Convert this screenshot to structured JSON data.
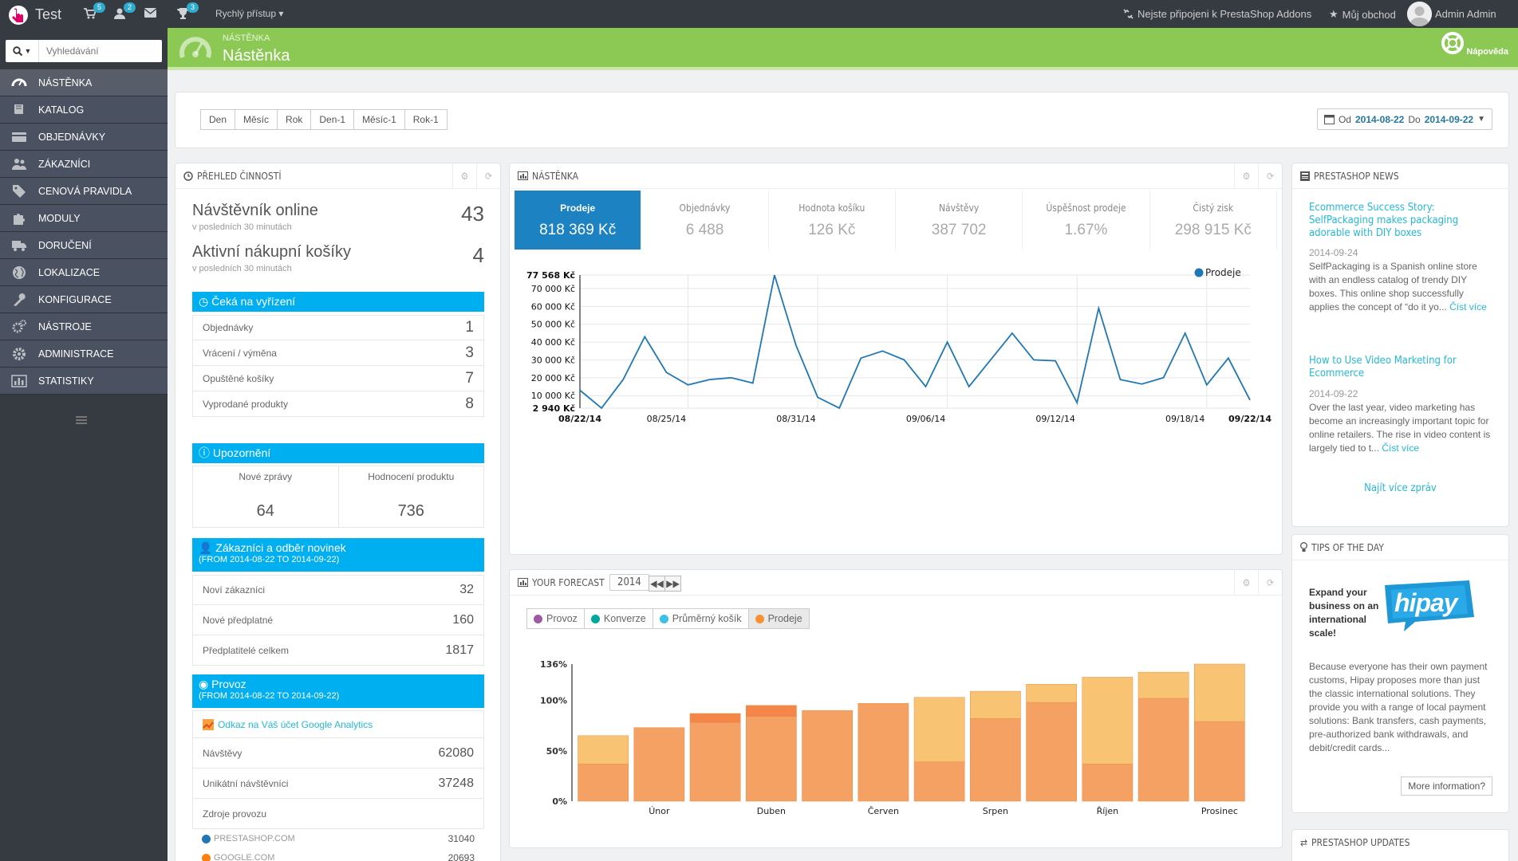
{
  "topbar": {
    "shop_name": "Test",
    "cart_badge": "5",
    "customers_badge": "2",
    "trophy_badge": "3",
    "quick_access": "Rychlý přístup",
    "addons_link": "Nejste připojeni k PrestaShop Addons",
    "my_shop": "Můj obchod",
    "admin_name": "Admin Admin"
  },
  "sidebar": {
    "search_placeholder": "Vyhledávání",
    "items": [
      {
        "label": "NÁSTĚNKA",
        "icon": "dashboard-icon"
      },
      {
        "label": "KATALOG",
        "icon": "book-icon"
      },
      {
        "label": "OBJEDNÁVKY",
        "icon": "credit-card-icon"
      },
      {
        "label": "ZÁKAZNÍCI",
        "icon": "users-icon"
      },
      {
        "label": "CENOVÁ PRAVIDLA",
        "icon": "tags-icon"
      },
      {
        "label": "MODULY",
        "icon": "puzzle-icon"
      },
      {
        "label": "DORUČENÍ",
        "icon": "truck-icon"
      },
      {
        "label": "LOKALIZACE",
        "icon": "globe-icon"
      },
      {
        "label": "KONFIGURACE",
        "icon": "wrench-icon"
      },
      {
        "label": "NÁSTROJE",
        "icon": "cogs-icon"
      },
      {
        "label": "ADMINISTRACE",
        "icon": "cog-icon"
      },
      {
        "label": "STATISTIKY",
        "icon": "bar-chart-icon"
      }
    ]
  },
  "header": {
    "breadcrumb": "NÁSTĚNKA",
    "title": "Nástěnka",
    "help": "Nápověda"
  },
  "period": {
    "buttons": [
      "Den",
      "Měsíc",
      "Rok",
      "Den-1",
      "Měsíc-1",
      "Rok-1"
    ],
    "from_label": "Od",
    "from": "2014-08-22",
    "to_label": "Do",
    "to": "2014-09-22"
  },
  "activity": {
    "title": "PŘEHLED ČINNOSTÍ",
    "online_label": "Návštěvník online",
    "online_value": "43",
    "online_note": "v posledních 30 minutách",
    "carts_label": "Aktivní nákupní košíky",
    "carts_value": "4",
    "carts_note": "v posledních 30 minutách",
    "pending_title": "Čeká na vyřízení",
    "pending": [
      {
        "label": "Objednávky",
        "value": "1"
      },
      {
        "label": "Vrácení / výměna",
        "value": "3"
      },
      {
        "label": "Opuštěné košíky",
        "value": "7"
      },
      {
        "label": "Vyprodané produkty",
        "value": "8"
      }
    ],
    "notif_title": "Upozornění",
    "notif": [
      {
        "label": "Nové zprávy",
        "value": "64"
      },
      {
        "label": "Hodnocení produktu",
        "value": "736"
      }
    ],
    "customers_title": "Zákazníci a odběr novinek",
    "customers_sub": "(FROM 2014-08-22 TO 2014-09-22)",
    "customers": [
      {
        "label": "Noví zákazníci",
        "value": "32"
      },
      {
        "label": "Nové předplatné",
        "value": "160"
      },
      {
        "label": "Předplatitelé celkem",
        "value": "1817"
      }
    ],
    "traffic_title": "Provoz",
    "traffic_sub": "(FROM 2014-08-22 TO 2014-09-22)",
    "ga_link": "Odkaz na Váš účet Google Analytics",
    "traffic": [
      {
        "label": "Návštěvy",
        "value": "62080"
      },
      {
        "label": "Unikátní návštěvníci",
        "value": "37248"
      }
    ],
    "sources_label": "Zdroje provozu",
    "sources": [
      {
        "label": "PRESTASHOP.COM",
        "value": "31040",
        "color": "#1f77b4"
      },
      {
        "label": "GOOGLE.COM",
        "value": "20693",
        "color": "#ff7f0e"
      }
    ]
  },
  "dashboard": {
    "title": "NÁSTĚNKA",
    "kpis": [
      {
        "label": "Prodeje",
        "value": "818 369 Kč"
      },
      {
        "label": "Objednávky",
        "value": "6 488"
      },
      {
        "label": "Hodnota košíku",
        "value": "126 Kč"
      },
      {
        "label": "Návštěvy",
        "value": "387 702"
      },
      {
        "label": "Úspěšnost prodeje",
        "value": "1.67%"
      },
      {
        "label": "Čistý zisk",
        "value": "298 915 Kč"
      }
    ],
    "chart_data": {
      "type": "line",
      "series": [
        {
          "name": "Prodeje",
          "color": "#1f77b4",
          "values": [
            13000,
            3000,
            19000,
            43000,
            23000,
            16000,
            19000,
            20000,
            17000,
            77568,
            38000,
            9000,
            3000,
            31000,
            35000,
            30000,
            15000,
            40000,
            15000,
            30000,
            45000,
            30000,
            29500,
            6000,
            59000,
            19000,
            16500,
            20000,
            45000,
            16000,
            31000,
            7500
          ]
        }
      ],
      "x_tick_labels": [
        "08/22/14",
        "08/25/14",
        "08/31/14",
        "09/06/14",
        "09/12/14",
        "09/18/14",
        "09/22/14"
      ],
      "y_tick_labels": [
        "77 568 Kč",
        "70 000 Kč",
        "60 000 Kč",
        "50 000 Kč",
        "40 000 Kč",
        "30 000 Kč",
        "20 000 Kč",
        "10 000 Kč",
        "2 940 Kč"
      ],
      "y_ticks": [
        77568,
        70000,
        60000,
        50000,
        40000,
        30000,
        20000,
        10000,
        2940
      ],
      "ylim": [
        2940,
        77568
      ],
      "legend": "top-right",
      "grid": true
    }
  },
  "forecast": {
    "title": "YOUR FORECAST",
    "year": "2014",
    "legend": [
      {
        "label": "Provoz",
        "color": "#9e5ba1",
        "active": false
      },
      {
        "label": "Konverze",
        "color": "#00a89c",
        "active": false
      },
      {
        "label": "Průměrný košík",
        "color": "#3cc2e6",
        "active": false
      },
      {
        "label": "Prodeje",
        "color": "#f99031",
        "active": true
      }
    ],
    "chart_data": {
      "type": "bar",
      "stacked": true,
      "y_tick_labels": [
        "136%",
        "100%",
        "50%",
        "0%"
      ],
      "y_ticks": [
        136,
        100,
        50,
        0
      ],
      "ylim": [
        0,
        136
      ],
      "visible_x_labels": [
        "Únor",
        "Duben",
        "Červen",
        "Srpen",
        "Říjen",
        "Prosinec"
      ],
      "series": [
        {
          "name": "Prodeje",
          "color": "#f4a163",
          "values": [
            37,
            73,
            78,
            84,
            90,
            97,
            39,
            82,
            98,
            37,
            102,
            79
          ]
        },
        {
          "name": "Prodeje",
          "color": "#f8c474",
          "values": [
            28,
            0,
            0,
            0,
            0,
            0,
            64,
            27,
            18,
            86,
            26,
            57
          ]
        },
        {
          "name": "Prodeje",
          "color": "#f4864a",
          "values": [
            0,
            0,
            9,
            11,
            0,
            0,
            0,
            0,
            0,
            0,
            0,
            0
          ]
        }
      ]
    }
  },
  "news": {
    "title": "PRESTASHOP NEWS",
    "items": [
      {
        "title": "Ecommerce Success Story: SelfPackaging makes packaging adorable with DIY boxes",
        "date": "2014-09-24",
        "text": "SelfPackaging is a Spanish online store with an endless catalog of trendy DIY boxes. This online shop successfully applies the concept of “do it yo...",
        "more": "Číst více"
      },
      {
        "title": "How to Use Video Marketing for Ecommerce",
        "date": "2014-09-22",
        "text": "Over the last year, video marketing has become an increasingly important topic for online retailers. The rise in video content is largely tied to t...",
        "more": "Číst více"
      }
    ],
    "more_news": "Najít více zpráv"
  },
  "tips": {
    "title": "TIPS OF THE DAY",
    "tag": "Expand your business on an international scale!",
    "logo_text": "hipay",
    "text": "Because everyone has their own payment customs, Hipay proposes more than just the classic international solutions. They provide you with a range of local payment solutions: Bank transfers, cash payments, pre-authorized bank withdrawals, and debit/credit cards...",
    "button": "More information?"
  },
  "updates": {
    "title": "PRESTASHOP UPDATES"
  }
}
